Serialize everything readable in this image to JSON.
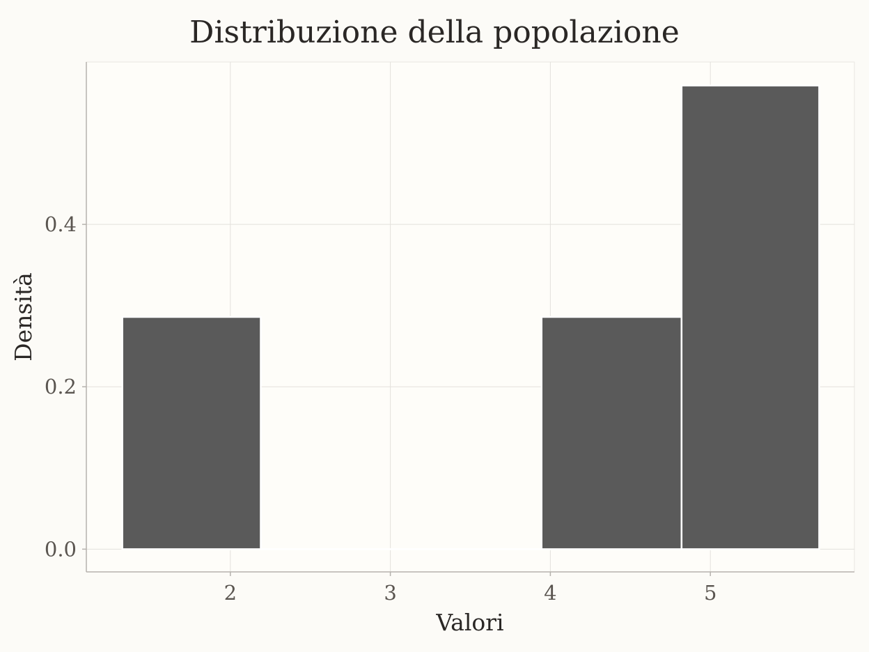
{
  "chart_data": {
    "type": "bar",
    "title": "Distribuzione della popolazione",
    "xlabel": "Valori",
    "ylabel": "Densità",
    "xlim": [
      1.1,
      5.9
    ],
    "ylim": [
      -0.028,
      0.6
    ],
    "xticks": [
      2,
      3,
      4,
      5
    ],
    "xtick_labels": [
      "2",
      "3",
      "4",
      "5"
    ],
    "yticks": [
      0.0,
      0.2,
      0.4
    ],
    "ytick_labels": [
      "0.0",
      "0.2",
      "0.4"
    ],
    "grid": true,
    "legend": "none",
    "bins": [
      {
        "x0": 1.325,
        "x1": 2.19,
        "value": 0.286
      },
      {
        "x0": 3.945,
        "x1": 4.82,
        "value": 0.286
      },
      {
        "x0": 4.82,
        "x1": 5.68,
        "value": 0.571
      }
    ],
    "colors": {
      "bar": "#5a5a5a",
      "bar_edge": "#ffffff",
      "panel_bg": "#fefdf9",
      "page_bg": "#fcfbf7",
      "grid": "#e3e1dc",
      "axis": "#b5b2ad"
    }
  }
}
